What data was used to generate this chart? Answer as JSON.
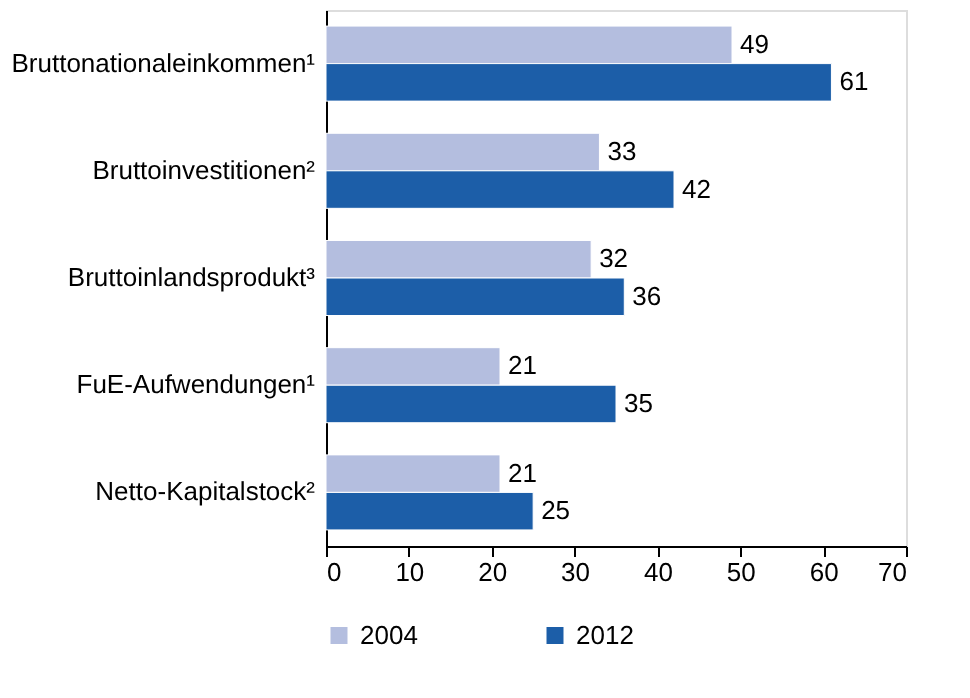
{
  "chart_data": {
    "type": "bar",
    "orientation": "horizontal",
    "categories": [
      "Bruttonationaleinkommen¹",
      "Bruttoinvestitionen²",
      "Bruttoinlandsprodukt³",
      "FuE-Aufwendungen¹",
      "Netto-Kapitalstock²"
    ],
    "series": [
      {
        "name": "2004",
        "color": "#b4bedf",
        "values": [
          49,
          33,
          32,
          21,
          21
        ]
      },
      {
        "name": "2012",
        "color": "#1c5ea8",
        "values": [
          61,
          42,
          36,
          35,
          25
        ]
      }
    ],
    "xlim": [
      0,
      70
    ],
    "xticks": [
      0,
      10,
      20,
      30,
      40,
      50,
      60,
      70
    ],
    "data_labels": true,
    "legend": "bottom",
    "grid": false
  }
}
